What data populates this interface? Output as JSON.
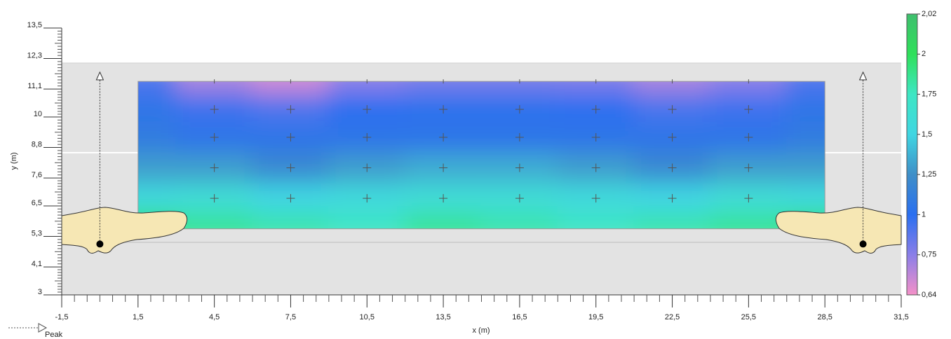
{
  "chart_data": {
    "type": "heatmap",
    "xlabel": "x (m)",
    "ylabel": "y (m)",
    "legend_label": "Peak",
    "xlim": [
      -1.5,
      31.5
    ],
    "xticks": [
      {
        "value": -1.5,
        "label": "-1,5"
      },
      {
        "value": 1.5,
        "label": "1,5"
      },
      {
        "value": 4.5,
        "label": "4,5"
      },
      {
        "value": 7.5,
        "label": "7,5"
      },
      {
        "value": 10.5,
        "label": "10,5"
      },
      {
        "value": 13.5,
        "label": "13,5"
      },
      {
        "value": 16.5,
        "label": "16,5"
      },
      {
        "value": 19.5,
        "label": "19,5"
      },
      {
        "value": 22.5,
        "label": "22,5"
      },
      {
        "value": 25.5,
        "label": "25,5"
      },
      {
        "value": 28.5,
        "label": "28,5"
      },
      {
        "value": 31.5,
        "label": "31,5"
      }
    ],
    "ylim": [
      3,
      13.5
    ],
    "yticks": [
      3,
      {
        "value": 4.1,
        "label": "4,1"
      },
      {
        "value": 5.3,
        "label": "5,3"
      },
      {
        "value": 6.5,
        "label": "6,5"
      },
      {
        "value": 7.6,
        "label": "7,6"
      },
      {
        "value": 8.8,
        "label": "8,8"
      },
      10,
      {
        "value": 11.1,
        "label": "11,1"
      },
      {
        "value": 12.3,
        "label": "12,3"
      },
      {
        "value": 13.5,
        "label": "13,5"
      }
    ],
    "colorbar_ticks": [
      {
        "value": 0.64,
        "label": "0,64"
      },
      {
        "value": 0.75,
        "label": "0,75"
      },
      1,
      {
        "value": 1.25,
        "label": "1,25"
      },
      {
        "value": 1.5,
        "label": "1,5"
      },
      {
        "value": 1.75,
        "label": "1,75"
      },
      2,
      {
        "value": 2.02,
        "label": "2,02"
      }
    ],
    "colorscale": [
      "#f490c8",
      "#8a7ee8",
      "#2a6ff0",
      "#3f8fc8",
      "#3fd6e2",
      "#3ee6c4",
      "#2fe05a",
      "#3fbf6e"
    ],
    "x": [
      1.5,
      4.5,
      7.5,
      10.5,
      13.5,
      16.5,
      19.5,
      22.5,
      25.5,
      28.5
    ],
    "y": [
      11.4,
      10.3,
      9.2,
      8.0,
      6.8,
      5.6
    ],
    "z": [
      [
        0.9,
        0.72,
        0.68,
        0.75,
        0.8,
        0.8,
        0.78,
        0.72,
        0.75,
        0.9
      ],
      [
        1.05,
        0.95,
        0.9,
        1.0,
        1.02,
        1.02,
        1.0,
        0.92,
        0.95,
        1.05
      ],
      [
        1.1,
        1.05,
        1.05,
        1.05,
        1.05,
        1.05,
        1.05,
        1.05,
        1.05,
        1.1
      ],
      [
        1.3,
        1.3,
        1.2,
        1.3,
        1.35,
        1.35,
        1.3,
        1.2,
        1.3,
        1.3
      ],
      [
        1.55,
        1.6,
        1.5,
        1.55,
        1.6,
        1.6,
        1.55,
        1.5,
        1.6,
        1.55
      ],
      [
        1.95,
        1.85,
        1.8,
        1.75,
        1.85,
        1.8,
        1.75,
        1.8,
        1.85,
        1.95
      ]
    ],
    "measure_x": [
      4.5,
      7.5,
      10.5,
      13.5,
      16.5,
      19.5,
      22.5,
      25.5
    ],
    "measure_y": [
      10.3,
      9.2,
      8.0,
      6.8
    ],
    "luminaires": {
      "x": [
        0,
        30
      ],
      "y": [
        5,
        5
      ]
    }
  }
}
